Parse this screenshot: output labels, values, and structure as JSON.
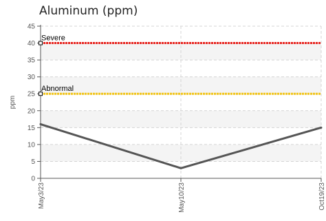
{
  "chart_data": {
    "type": "line",
    "title": "Aluminum (ppm)",
    "ylabel": "ppm",
    "xlabel": "",
    "ylim": [
      0,
      45
    ],
    "yticks": [
      0,
      5,
      10,
      15,
      20,
      25,
      30,
      35,
      40,
      45
    ],
    "categories": [
      "May3/23",
      "May10/23",
      "Oct19/23"
    ],
    "series": [
      {
        "values": [
          16,
          3,
          15
        ],
        "color": "#555555"
      }
    ],
    "thresholds": [
      {
        "name": "Severe",
        "value": 40,
        "color": "#e8231e"
      },
      {
        "name": "Abnormal",
        "value": 25,
        "color": "#f2c314"
      }
    ],
    "grid": true
  }
}
